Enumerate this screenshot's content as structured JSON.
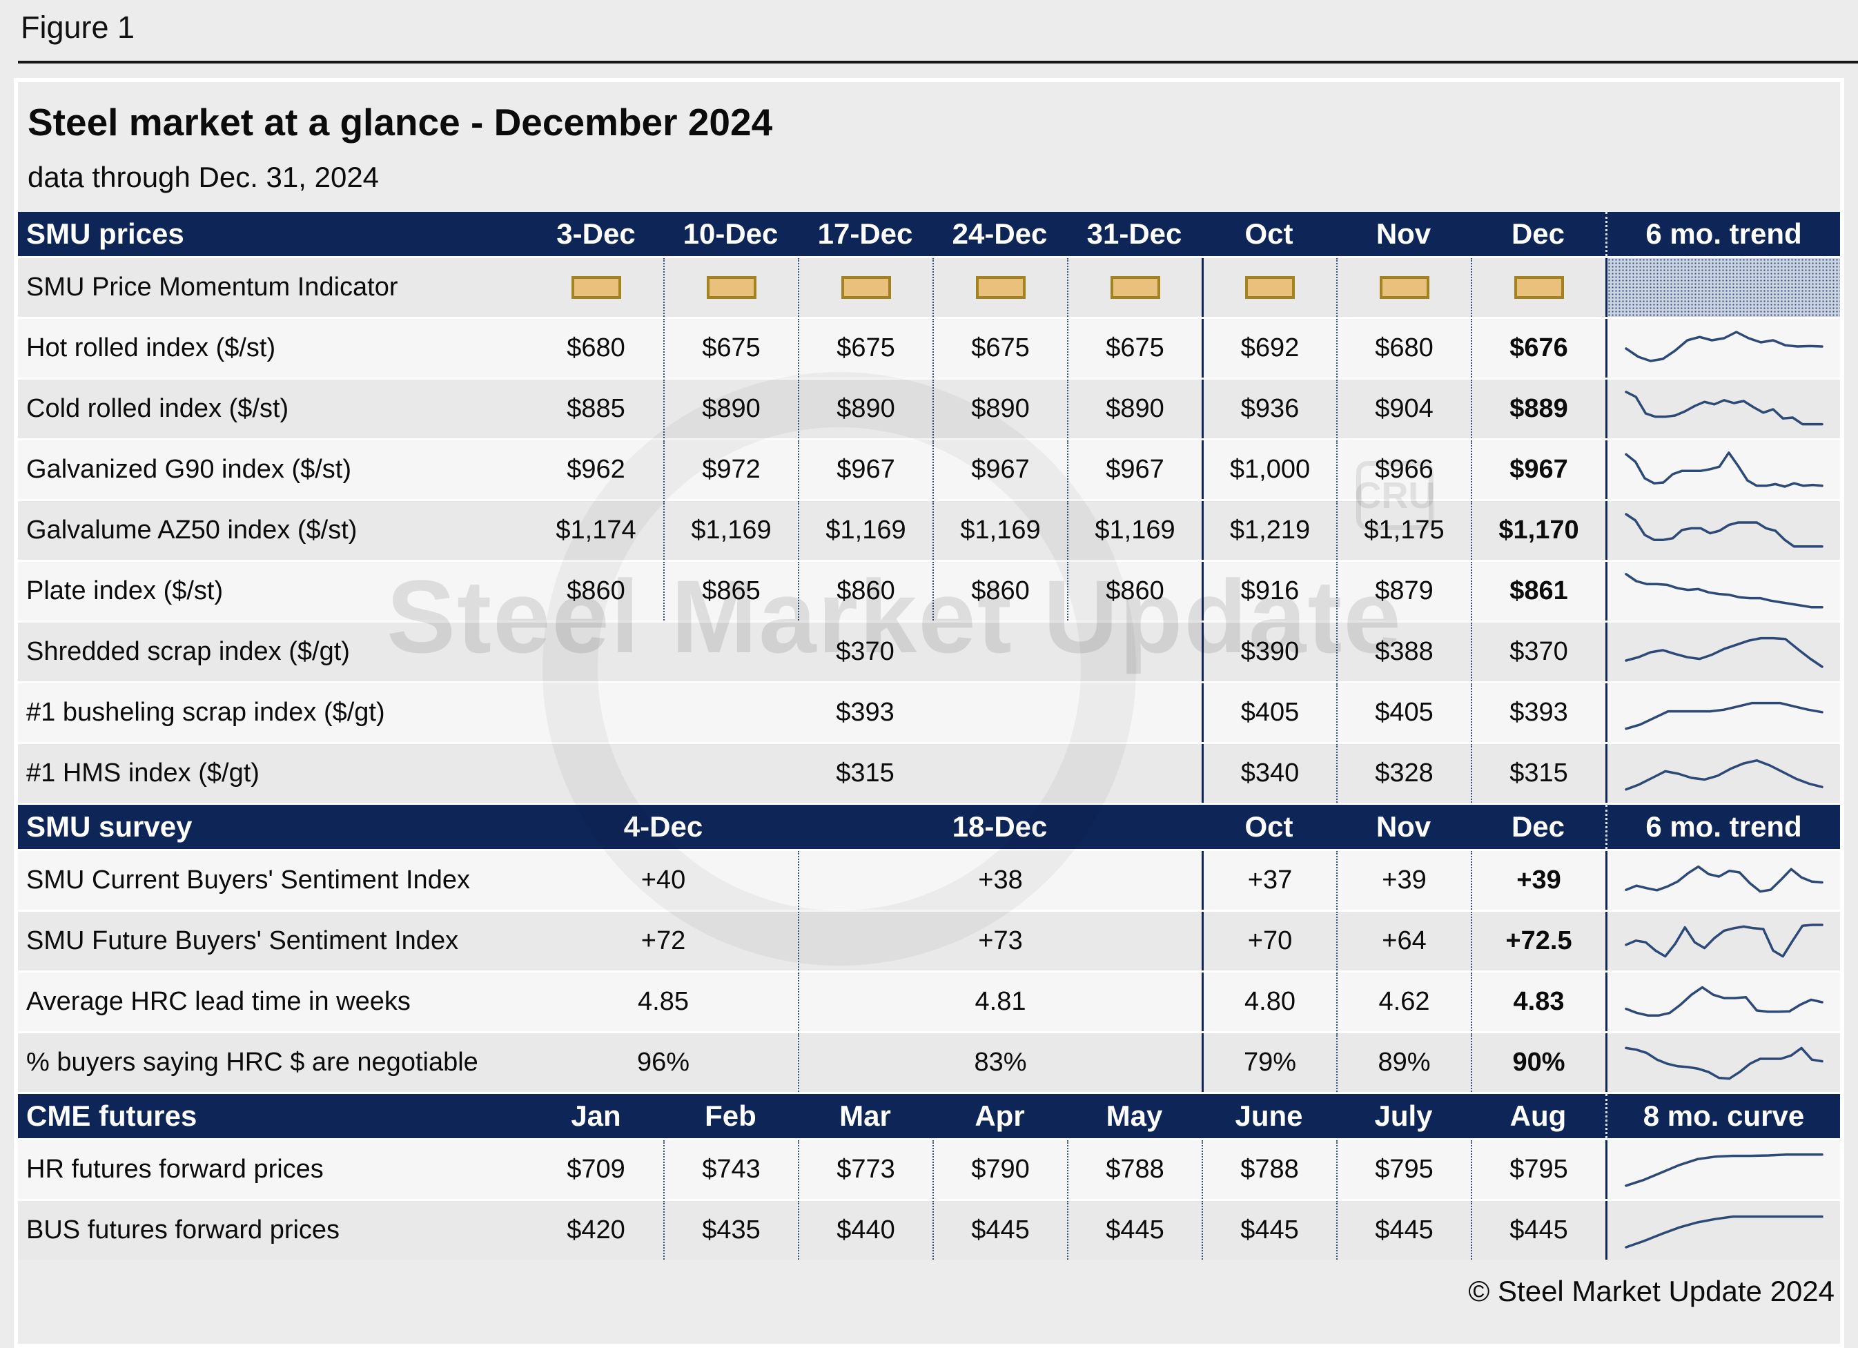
{
  "figure_label": "Figure 1",
  "header": {
    "title": "Steel market at a glance - December 2024",
    "subtitle": "data through Dec. 31, 2024"
  },
  "watermark": {
    "text": "Steel Market Update",
    "logo": "CRU"
  },
  "footer": {
    "copyright": "© Steel Market Update 2024"
  },
  "colors": {
    "header_navy": "#0e2558",
    "sparkline": "#2c4977",
    "momentum_fill": "#eac17c",
    "momentum_border": "#a2831f",
    "row_light": "#f6f6f6",
    "row_dark": "#e9e9e9"
  },
  "chart_data": [
    {
      "type": "table",
      "section_label": "SMU prices",
      "columns": [
        "3-Dec",
        "10-Dec",
        "17-Dec",
        "24-Dec",
        "31-Dec",
        "Oct",
        "Nov",
        "Dec",
        "6 mo. trend"
      ],
      "momentum_label": "SMU Price Momentum Indicator",
      "rows": [
        {
          "label": "Hot rolled index ($/st)",
          "values": [
            "$680",
            "$675",
            "$675",
            "$675",
            "$675",
            "$692",
            "$680",
            "$676"
          ],
          "spark": [
            50,
            30,
            20,
            25,
            45,
            70,
            78,
            70,
            75,
            90,
            75,
            65,
            70,
            58,
            55,
            56,
            55
          ]
        },
        {
          "label": "Cold rolled index ($/st)",
          "values": [
            "$885",
            "$890",
            "$890",
            "$890",
            "$890",
            "$936",
            "$904",
            "$889"
          ],
          "spark": [
            92,
            80,
            40,
            32,
            32,
            35,
            45,
            58,
            68,
            62,
            72,
            65,
            70,
            55,
            42,
            50,
            28,
            30,
            14,
            14,
            14
          ]
        },
        {
          "label": "Galvanized G90 index ($/st)",
          "values": [
            "$962",
            "$972",
            "$967",
            "$967",
            "$967",
            "$1,000",
            "$966",
            "$967"
          ],
          "spark": [
            88,
            70,
            30,
            18,
            20,
            40,
            48,
            48,
            48,
            52,
            58,
            92,
            60,
            25,
            12,
            12,
            16,
            10,
            18,
            12,
            14,
            12
          ]
        },
        {
          "label": "Galvalume AZ50 index ($/st)",
          "values": [
            "$1,174",
            "$1,169",
            "$1,169",
            "$1,169",
            "$1,169",
            "$1,219",
            "$1,175",
            "$1,170"
          ],
          "spark": [
            90,
            75,
            40,
            28,
            28,
            32,
            52,
            56,
            56,
            44,
            50,
            64,
            70,
            70,
            70,
            56,
            50,
            28,
            12,
            12,
            12,
            12
          ]
        },
        {
          "label": "Plate index ($/st)",
          "values": [
            "$860",
            "$865",
            "$860",
            "$860",
            "$860",
            "$916",
            "$879",
            "$861"
          ],
          "spark": [
            92,
            75,
            68,
            68,
            66,
            58,
            54,
            56,
            48,
            44,
            42,
            36,
            34,
            34,
            28,
            24,
            20,
            16,
            12,
            12
          ]
        }
      ],
      "scrap_rows": [
        {
          "label": "Shredded scrap index ($/gt)",
          "weekly_value": "$370",
          "values": [
            "$390",
            "$388",
            "$370"
          ],
          "spark": [
            30,
            38,
            50,
            55,
            46,
            38,
            34,
            44,
            58,
            68,
            78,
            84,
            84,
            82,
            58,
            35,
            15
          ]
        },
        {
          "label": "#1 busheling scrap index ($/gt)",
          "weekly_value": "$393",
          "values": [
            "$405",
            "$405",
            "$393"
          ],
          "spark": [
            12,
            22,
            38,
            54,
            54,
            54,
            54,
            58,
            66,
            74,
            74,
            74,
            66,
            58,
            52
          ]
        },
        {
          "label": "#1 HMS index ($/gt)",
          "weekly_value": "$315",
          "values": [
            "$340",
            "$328",
            "$315"
          ],
          "spark": [
            12,
            24,
            40,
            56,
            50,
            40,
            36,
            45,
            62,
            75,
            82,
            70,
            54,
            38,
            26,
            18
          ]
        }
      ]
    },
    {
      "type": "table",
      "section_label": "SMU survey",
      "columns": [
        "4-Dec",
        "18-Dec",
        "Oct",
        "Nov",
        "Dec",
        "6 mo. trend"
      ],
      "rows": [
        {
          "label": "SMU Current Buyers' Sentiment Index",
          "values": [
            "+40",
            "+38",
            "+37",
            "+39",
            "+39"
          ],
          "spark": [
            28,
            38,
            32,
            27,
            36,
            48,
            68,
            84,
            66,
            60,
            74,
            70,
            44,
            24,
            28,
            52,
            78,
            58,
            48,
            46
          ]
        },
        {
          "label": "SMU Future Buyers' Sentiment Index",
          "values": [
            "+72",
            "+73",
            "+70",
            "+64",
            "+72.5"
          ],
          "spark": [
            42,
            52,
            48,
            28,
            14,
            44,
            84,
            48,
            34,
            58,
            76,
            82,
            86,
            82,
            80,
            28,
            14,
            52,
            88,
            90,
            90
          ]
        },
        {
          "label": "Average HRC lead time in weeks",
          "values": [
            "4.85",
            "4.81",
            "4.80",
            "4.62",
            "4.83"
          ],
          "spark": [
            34,
            24,
            18,
            18,
            24,
            44,
            68,
            86,
            68,
            60,
            60,
            62,
            30,
            27,
            27,
            28,
            44,
            56,
            50
          ]
        },
        {
          "label": "% buyers saying HRC $ are negotiable",
          "values": [
            "96%",
            "83%",
            "79%",
            "89%",
            "90%"
          ],
          "spark": [
            86,
            82,
            74,
            58,
            48,
            42,
            40,
            36,
            28,
            14,
            12,
            28,
            48,
            60,
            60,
            60,
            68,
            86,
            58,
            54
          ]
        }
      ]
    },
    {
      "type": "table",
      "section_label": "CME futures",
      "columns": [
        "Jan",
        "Feb",
        "Mar",
        "Apr",
        "May",
        "June",
        "July",
        "Aug",
        "8 mo. curve"
      ],
      "rows": [
        {
          "label": "HR futures forward prices",
          "values": [
            "$709",
            "$743",
            "$773",
            "$790",
            "$788",
            "$788",
            "$795",
            "$795"
          ],
          "spark": [
            12,
            26,
            44,
            62,
            76,
            82,
            84,
            84,
            85,
            87,
            87,
            87
          ]
        },
        {
          "label": "BUS futures forward prices",
          "values": [
            "$420",
            "$435",
            "$440",
            "$445",
            "$445",
            "$445",
            "$445",
            "$445"
          ],
          "spark": [
            10,
            25,
            42,
            58,
            70,
            78,
            84,
            84,
            84,
            84,
            84,
            84
          ]
        }
      ]
    }
  ]
}
